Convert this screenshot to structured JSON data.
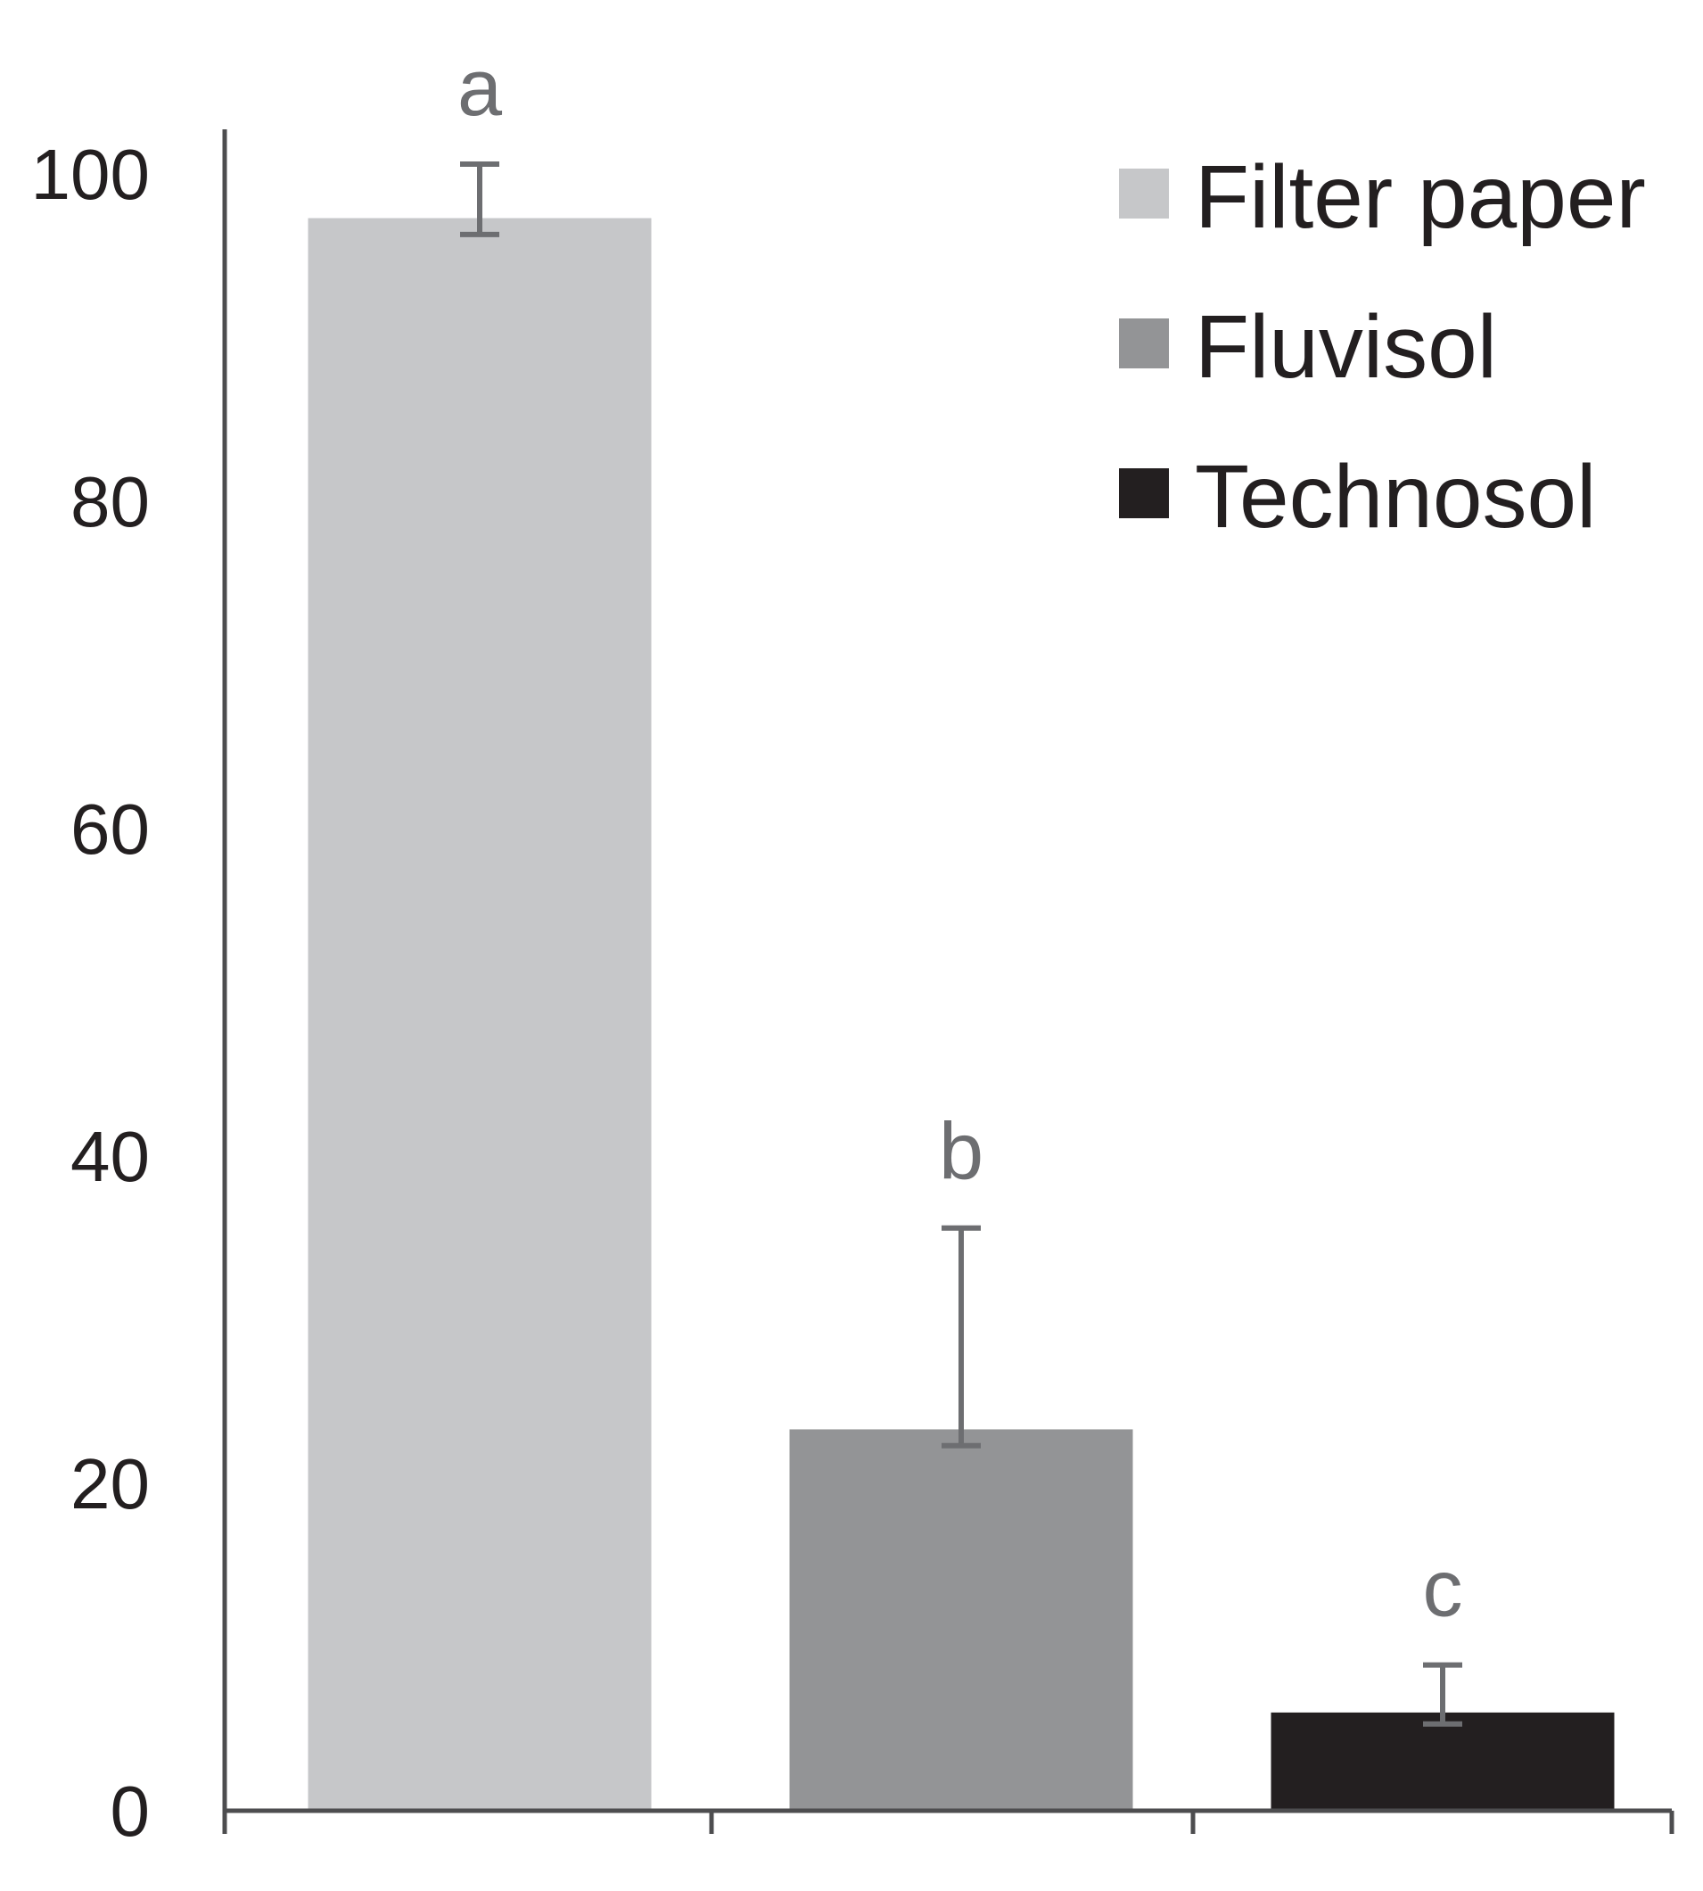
{
  "chart_data": {
    "type": "bar",
    "title": "",
    "xlabel": "",
    "ylabel": "",
    "ylim": [
      0,
      100
    ],
    "yticks": [
      0,
      20,
      40,
      60,
      80,
      100
    ],
    "grid": false,
    "legend_position": "top-right",
    "categories": [
      "Filter paper",
      "Fluvisol",
      "Technosol"
    ],
    "values": [
      97.3,
      23.3,
      6.0
    ],
    "error_low": [
      96.3,
      22.3,
      5.3
    ],
    "error_high": [
      100.6,
      35.6,
      8.9
    ],
    "significance_labels": [
      "a",
      "b",
      "c"
    ],
    "colors": [
      "#c6c7c9",
      "#939496",
      "#231f20"
    ],
    "series": [
      {
        "name": "Filter paper",
        "color": "#c6c7c9"
      },
      {
        "name": "Fluvisol",
        "color": "#939496"
      },
      {
        "name": "Technosol",
        "color": "#231f20"
      }
    ],
    "axis_color": "#4d4d4f",
    "error_bar_color": "#6d6e71"
  }
}
